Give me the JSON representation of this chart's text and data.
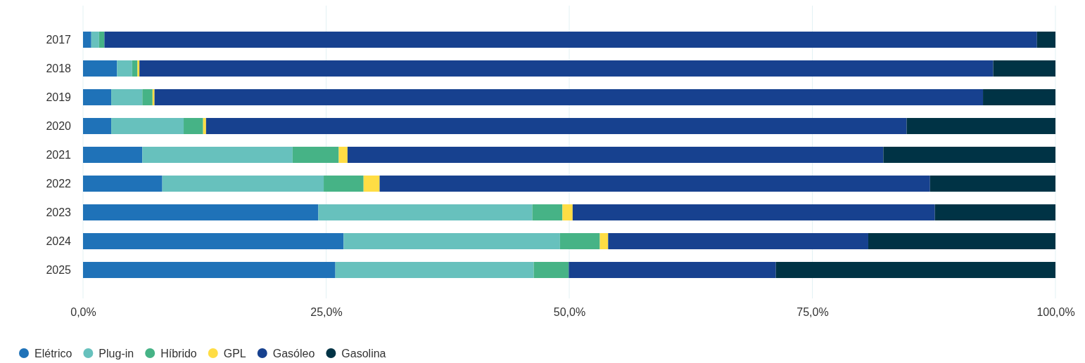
{
  "chart_data": {
    "type": "bar",
    "orientation": "horizontal",
    "stacked": true,
    "categories": [
      "2017",
      "2018",
      "2019",
      "2020",
      "2021",
      "2022",
      "2023",
      "2024",
      "2025"
    ],
    "series": [
      {
        "name": "Elétrico",
        "color": "#1f72b8",
        "values": [
          0.85,
          3.5,
          2.9,
          2.9,
          6.1,
          8.15,
          24.2,
          26.8,
          25.95
        ]
      },
      {
        "name": "Plug-in",
        "color": "#67c1bd",
        "values": [
          0.8,
          1.55,
          3.2,
          7.45,
          15.45,
          16.6,
          22.0,
          22.25,
          20.4
        ]
      },
      {
        "name": "Híbrido",
        "color": "#46b386",
        "values": [
          0.55,
          0.55,
          1.05,
          2.0,
          4.75,
          4.1,
          3.1,
          4.1,
          3.6
        ]
      },
      {
        "name": "GPL",
        "color": "#ffdd44",
        "values": [
          0,
          0.2,
          0.2,
          0.3,
          0.9,
          1.65,
          1.05,
          0.85,
          0
        ]
      },
      {
        "name": "Gasóleo",
        "color": "#17418f",
        "values": [
          95.9,
          87.8,
          85.2,
          72.05,
          55.1,
          56.6,
          37.25,
          26.75,
          21.3
        ]
      },
      {
        "name": "Gasolina",
        "color": "#003345",
        "values": [
          1.9,
          6.4,
          7.45,
          15.3,
          17.7,
          12.9,
          12.4,
          19.25,
          28.75
        ]
      }
    ],
    "xlim": [
      0,
      100
    ],
    "xticks": [
      {
        "value": 0,
        "label": "0,0%"
      },
      {
        "value": 25,
        "label": "25,0%"
      },
      {
        "value": 50,
        "label": "50,0%"
      },
      {
        "value": 75,
        "label": "75,0%"
      },
      {
        "value": 100,
        "label": "100,0%"
      }
    ],
    "grid": "x",
    "legend": "bottom left"
  }
}
